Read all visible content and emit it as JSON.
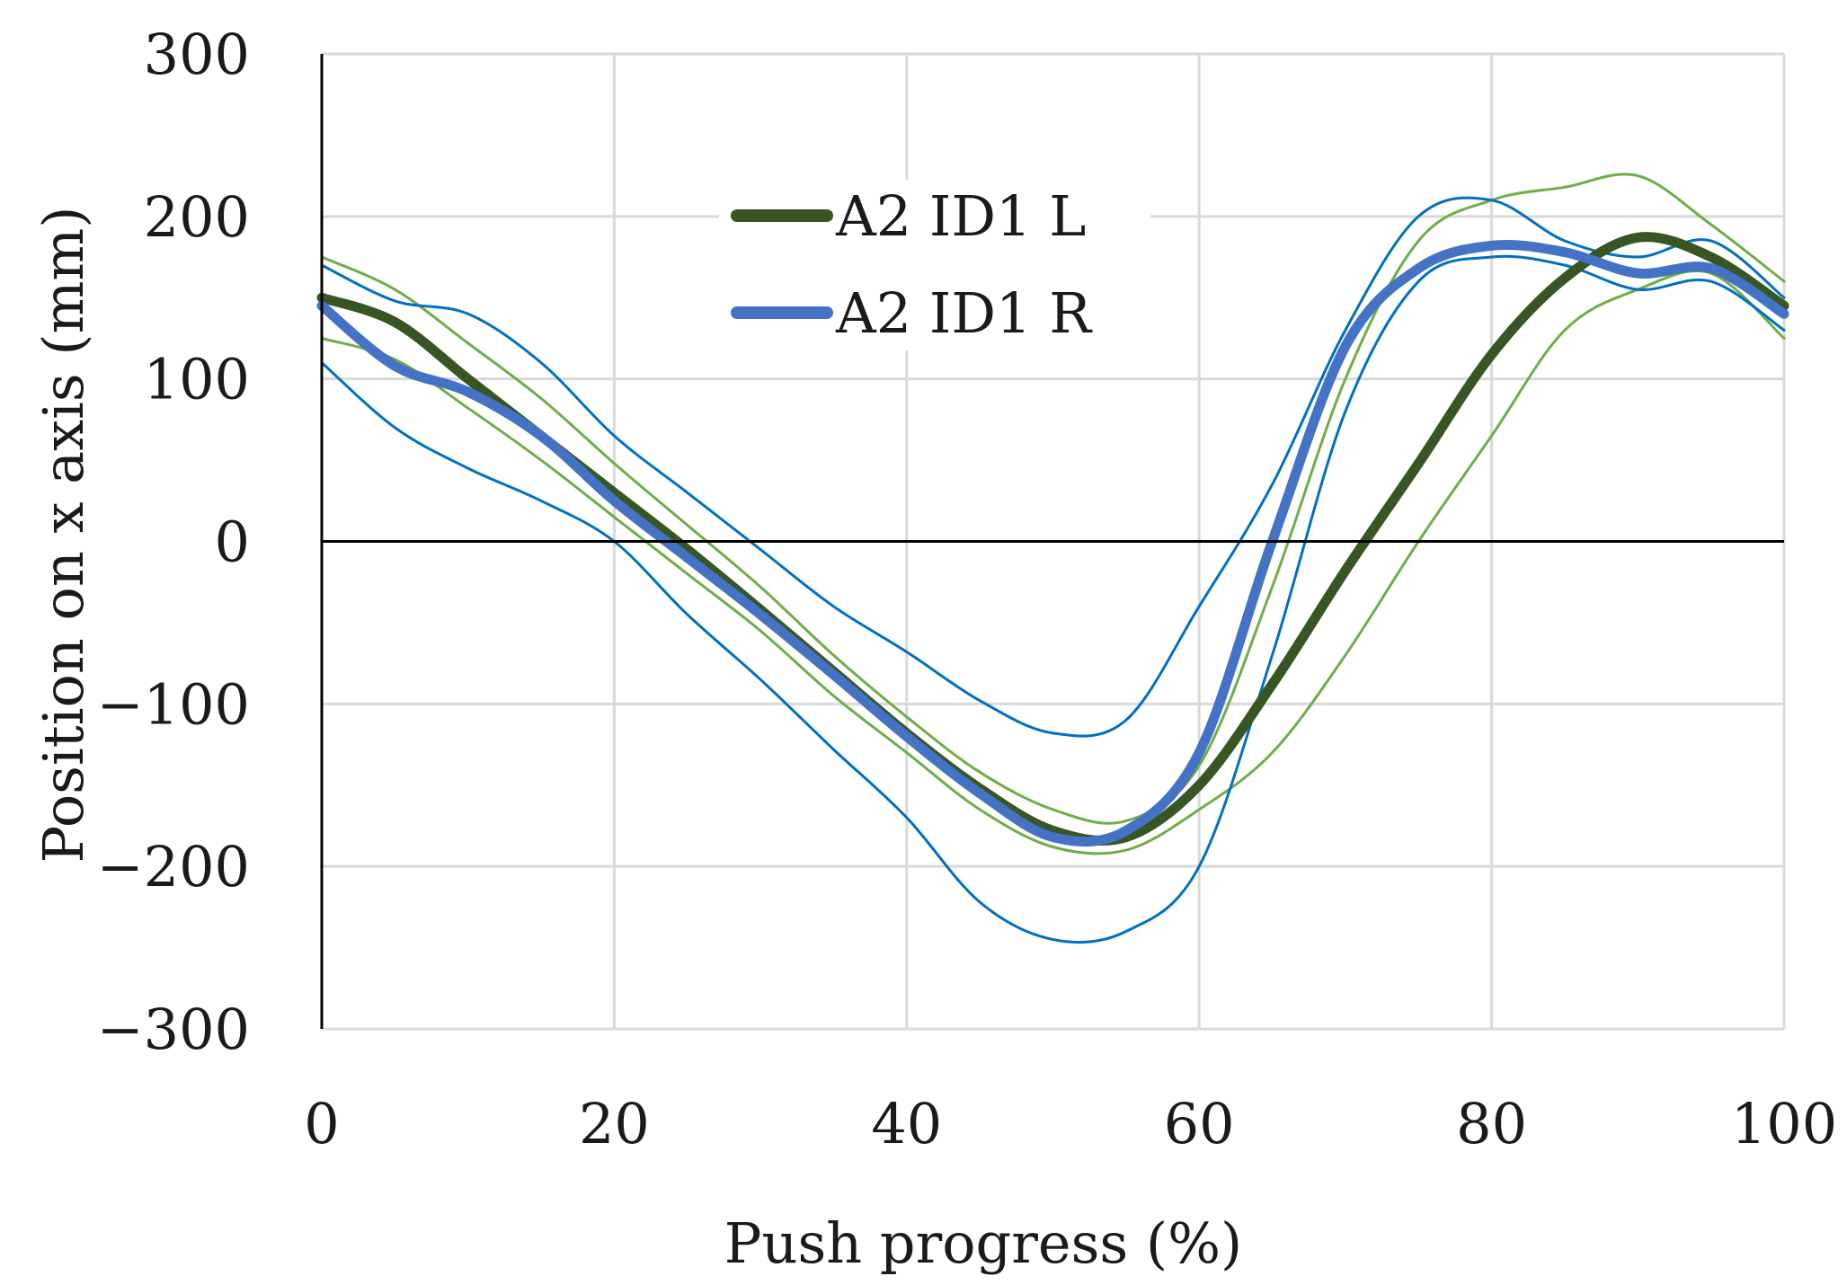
{
  "chart_data": {
    "type": "line",
    "title": "",
    "xlabel": "Push progress (%)",
    "ylabel": "Position on x axis (mm)",
    "xlim": [
      0,
      100
    ],
    "ylim": [
      -300,
      300
    ],
    "x_ticks": [
      0,
      20,
      40,
      60,
      80,
      100
    ],
    "y_ticks": [
      300,
      200,
      100,
      0,
      -100,
      -200,
      -300
    ],
    "x_tick_labels": [
      "0",
      "20",
      "40",
      "60",
      "80",
      "100"
    ],
    "y_tick_labels": [
      "300",
      "200",
      "100",
      "0",
      "−100",
      "−200",
      "−300"
    ],
    "grid": true,
    "legend_position": "top-center",
    "x": [
      0,
      5,
      10,
      15,
      20,
      25,
      30,
      35,
      40,
      45,
      50,
      55,
      60,
      65,
      70,
      75,
      80,
      85,
      90,
      95,
      100
    ],
    "series": [
      {
        "name": "A2 ID1 L",
        "role": "mean",
        "color": "#375623",
        "values": [
          150,
          135,
          100,
          65,
          30,
          -5,
          -42,
          -80,
          -118,
          -152,
          -178,
          -182,
          -150,
          -88,
          -18,
          48,
          115,
          162,
          187,
          175,
          145
        ]
      },
      {
        "name": "A2 ID1 R",
        "role": "mean",
        "color": "#4472C4",
        "values": [
          145,
          108,
          92,
          65,
          25,
          -10,
          -45,
          -82,
          -120,
          -155,
          -182,
          -178,
          -130,
          0,
          120,
          168,
          182,
          178,
          165,
          168,
          140
        ]
      },
      {
        "name": "A2 ID1 L upper",
        "role": "band",
        "color": "#70AD47",
        "values": [
          175,
          155,
          122,
          88,
          48,
          10,
          -28,
          -70,
          -108,
          -142,
          -165,
          -172,
          -138,
          -28,
          100,
          185,
          210,
          218,
          225,
          195,
          160
        ]
      },
      {
        "name": "A2 ID1 L lower",
        "role": "band",
        "color": "#70AD47",
        "values": [
          125,
          112,
          82,
          50,
          15,
          -20,
          -55,
          -95,
          -130,
          -165,
          -188,
          -190,
          -165,
          -130,
          -70,
          0,
          65,
          130,
          155,
          165,
          125
        ]
      },
      {
        "name": "A2 ID1 R upper",
        "role": "band",
        "color": "#0070C0",
        "values": [
          170,
          148,
          140,
          110,
          65,
          30,
          -5,
          -40,
          -68,
          -98,
          -118,
          -110,
          -40,
          35,
          130,
          200,
          210,
          185,
          175,
          185,
          150
        ]
      },
      {
        "name": "A2 ID1 R lower",
        "role": "band",
        "color": "#0070C0",
        "values": [
          110,
          70,
          45,
          25,
          0,
          -45,
          -85,
          -128,
          -170,
          -222,
          -245,
          -240,
          -200,
          -70,
          80,
          160,
          175,
          170,
          155,
          160,
          130
        ]
      }
    ],
    "legend": [
      {
        "label": "A2 ID1 L",
        "color": "#375623"
      },
      {
        "label": "A2 ID1 R",
        "color": "#4472C4"
      }
    ]
  }
}
